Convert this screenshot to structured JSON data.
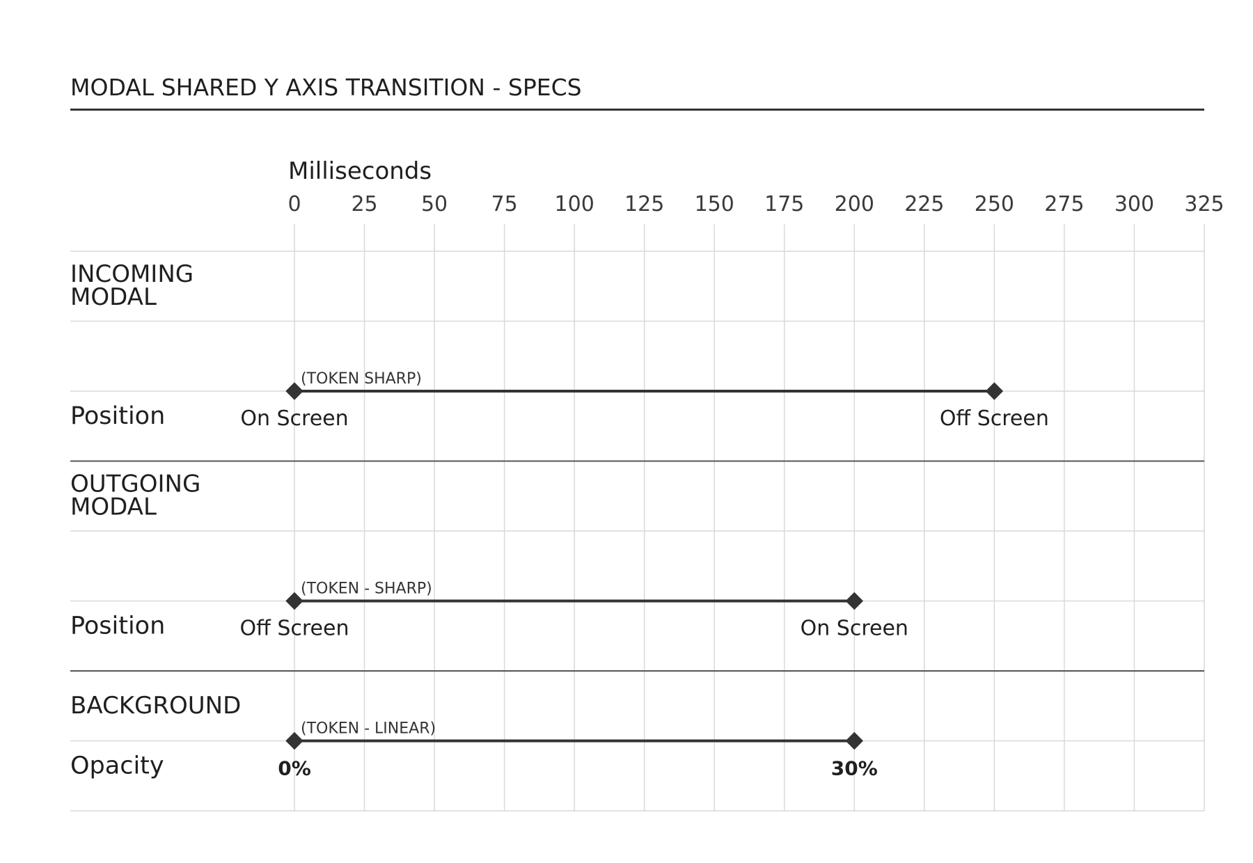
{
  "title": "MODAL SHARED Y AXIS TRANSITION - SPECS",
  "colors": {
    "ink": "#333333",
    "grid": "#d9d9d9",
    "rule": "#555555"
  },
  "chart_data": {
    "type": "timeline",
    "axis_title": "Milliseconds",
    "ticks": [
      0,
      25,
      50,
      75,
      100,
      125,
      150,
      175,
      200,
      225,
      250,
      275,
      300,
      325
    ],
    "range": [
      0,
      325
    ],
    "sections": [
      {
        "name": "INCOMING MODAL",
        "name_lines": [
          "INCOMING",
          "MODAL"
        ],
        "rows": [
          {
            "label": "Position",
            "token": "(TOKEN SHARP)",
            "start": 0,
            "end": 250,
            "start_label": "On Screen",
            "end_label": "Off Screen"
          }
        ]
      },
      {
        "name": "OUTGOING MODAL",
        "name_lines": [
          "OUTGOING",
          "MODAL"
        ],
        "rows": [
          {
            "label": "Position",
            "token": "(TOKEN - SHARP)",
            "start": 0,
            "end": 200,
            "start_label": "Off Screen",
            "end_label": "On Screen"
          }
        ]
      },
      {
        "name": "BACKGROUND",
        "name_lines": [
          "BACKGROUND"
        ],
        "rows": [
          {
            "label": "Opacity",
            "token": "(TOKEN - LINEAR)",
            "start": 0,
            "end": 200,
            "start_label": "0%",
            "end_label": "30%"
          }
        ]
      }
    ]
  }
}
